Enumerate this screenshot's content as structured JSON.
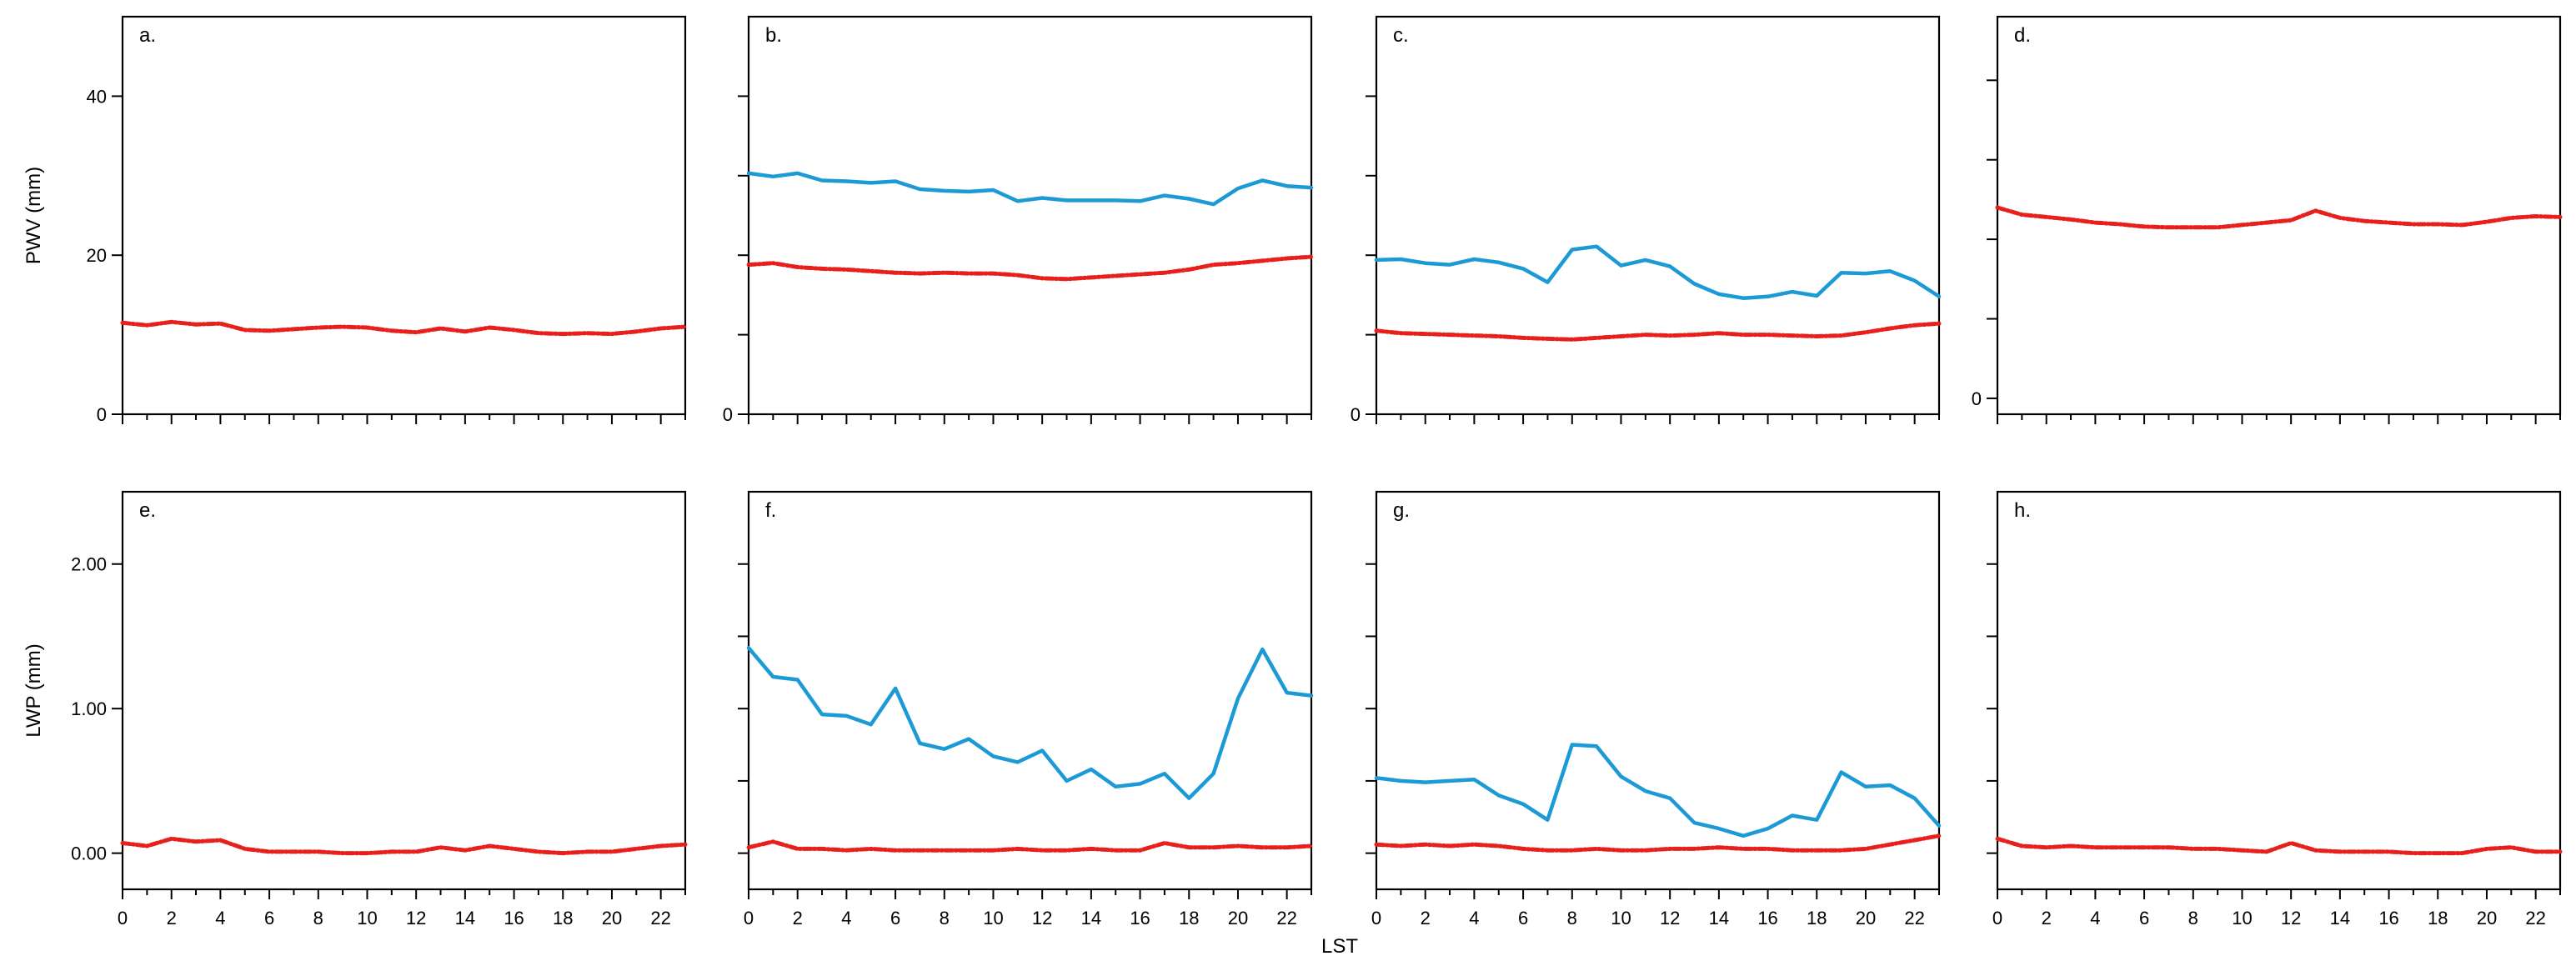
{
  "chart_data": [
    {
      "id": "a",
      "label": "a.",
      "type": "line",
      "ylabel": "PWV (mm)",
      "ylim": [
        0,
        50
      ],
      "yticks": [
        0,
        20,
        40
      ],
      "ytick_labels": [
        "0",
        "20",
        "40"
      ],
      "xlim": [
        0,
        23
      ],
      "x_tick_labels_shown": false,
      "series": [
        {
          "name": "red-dashed",
          "color": "#e8201c",
          "style": "dashed",
          "x": [
            0,
            1,
            2,
            3,
            4,
            5,
            6,
            7,
            8,
            9,
            10,
            11,
            12,
            13,
            14,
            15,
            16,
            17,
            18,
            19,
            20,
            21,
            22,
            23
          ],
          "values": [
            11.5,
            11.2,
            11.6,
            11.3,
            11.4,
            10.6,
            10.5,
            10.7,
            10.9,
            11.0,
            10.9,
            10.5,
            10.3,
            10.8,
            10.4,
            10.9,
            10.6,
            10.2,
            10.1,
            10.2,
            10.1,
            10.4,
            10.8,
            11.0
          ]
        }
      ]
    },
    {
      "id": "b",
      "label": "b.",
      "type": "line",
      "ylim": [
        0,
        50
      ],
      "yticks": [
        0,
        10,
        20,
        30,
        40
      ],
      "ytick_labels": [
        "0",
        "",
        "",
        "",
        ""
      ],
      "xlim": [
        0,
        23
      ],
      "x_tick_labels_shown": false,
      "series": [
        {
          "name": "blue-solid",
          "color": "#1b9ad6",
          "style": "solid",
          "x": [
            0,
            1,
            2,
            3,
            4,
            5,
            6,
            7,
            8,
            9,
            10,
            11,
            12,
            13,
            14,
            15,
            16,
            17,
            18,
            19,
            20,
            21,
            22,
            23
          ],
          "values": [
            30.3,
            29.9,
            30.3,
            29.4,
            29.3,
            29.1,
            29.3,
            28.3,
            28.1,
            28.0,
            28.2,
            26.8,
            27.2,
            26.9,
            26.9,
            26.9,
            26.8,
            27.5,
            27.1,
            26.4,
            28.4,
            29.4,
            28.7,
            28.5
          ]
        },
        {
          "name": "red-dashed",
          "color": "#e8201c",
          "style": "dashed",
          "x": [
            0,
            1,
            2,
            3,
            4,
            5,
            6,
            7,
            8,
            9,
            10,
            11,
            12,
            13,
            14,
            15,
            16,
            17,
            18,
            19,
            20,
            21,
            22,
            23
          ],
          "values": [
            18.8,
            19.0,
            18.5,
            18.3,
            18.2,
            18.0,
            17.8,
            17.7,
            17.8,
            17.7,
            17.7,
            17.5,
            17.1,
            17.0,
            17.2,
            17.4,
            17.6,
            17.8,
            18.2,
            18.8,
            19.0,
            19.3,
            19.6,
            19.8
          ]
        }
      ]
    },
    {
      "id": "c",
      "label": "c.",
      "type": "line",
      "ylim": [
        0,
        50
      ],
      "yticks": [
        0,
        10,
        20,
        30,
        40
      ],
      "ytick_labels": [
        "0",
        "",
        "",
        "",
        ""
      ],
      "xlim": [
        0,
        23
      ],
      "x_tick_labels_shown": false,
      "series": [
        {
          "name": "blue-solid",
          "color": "#1b9ad6",
          "style": "solid",
          "x": [
            0,
            1,
            2,
            3,
            4,
            5,
            6,
            7,
            8,
            9,
            10,
            11,
            12,
            13,
            14,
            15,
            16,
            17,
            18,
            19,
            20,
            21,
            22,
            23
          ],
          "values": [
            19.4,
            19.5,
            19.0,
            18.8,
            19.5,
            19.1,
            18.3,
            16.6,
            20.7,
            21.1,
            18.7,
            19.4,
            18.6,
            16.4,
            15.1,
            14.6,
            14.8,
            15.4,
            14.9,
            17.8,
            17.7,
            18.0,
            16.8,
            14.8
          ]
        },
        {
          "name": "red-dashed",
          "color": "#e8201c",
          "style": "dashed",
          "x": [
            0,
            1,
            2,
            3,
            4,
            5,
            6,
            7,
            8,
            9,
            10,
            11,
            12,
            13,
            14,
            15,
            16,
            17,
            18,
            19,
            20,
            21,
            22,
            23
          ],
          "values": [
            10.5,
            10.2,
            10.1,
            10.0,
            9.9,
            9.8,
            9.6,
            9.5,
            9.4,
            9.6,
            9.8,
            10.0,
            9.9,
            10.0,
            10.2,
            10.0,
            10.0,
            9.9,
            9.8,
            9.9,
            10.3,
            10.8,
            11.2,
            11.4
          ]
        }
      ]
    },
    {
      "id": "d",
      "label": "d.",
      "type": "line",
      "ylim": [
        -2,
        48
      ],
      "yticks": [
        0,
        10,
        20,
        30,
        40
      ],
      "ytick_labels": [
        "0",
        "",
        "",
        "",
        ""
      ],
      "xlim": [
        0,
        23
      ],
      "x_tick_labels_shown": false,
      "series": [
        {
          "name": "red-dashed",
          "color": "#e8201c",
          "style": "dashed",
          "x": [
            0,
            1,
            2,
            3,
            4,
            5,
            6,
            7,
            8,
            9,
            10,
            11,
            12,
            13,
            14,
            15,
            16,
            17,
            18,
            19,
            20,
            21,
            22,
            23
          ],
          "values": [
            24.0,
            23.1,
            22.8,
            22.5,
            22.1,
            21.9,
            21.6,
            21.5,
            21.5,
            21.5,
            21.8,
            22.1,
            22.4,
            23.6,
            22.7,
            22.3,
            22.1,
            21.9,
            21.9,
            21.8,
            22.2,
            22.7,
            22.9,
            22.8
          ]
        }
      ]
    },
    {
      "id": "e",
      "label": "e.",
      "type": "line",
      "ylabel": "LWP (mm)",
      "ylim": [
        -0.25,
        2.5
      ],
      "yticks": [
        0,
        1,
        2
      ],
      "ytick_labels": [
        "0.00",
        "1.00",
        "2.00"
      ],
      "xlim": [
        0,
        23
      ],
      "xticks": [
        0,
        2,
        4,
        6,
        8,
        10,
        12,
        14,
        16,
        18,
        20,
        22
      ],
      "xtick_labels": [
        "0",
        "2",
        "4",
        "6",
        "8",
        "10",
        "12",
        "14",
        "16",
        "18",
        "20",
        "22"
      ],
      "x_tick_labels_shown": true,
      "series": [
        {
          "name": "red-dashed",
          "color": "#e8201c",
          "style": "dashed",
          "x": [
            0,
            1,
            2,
            3,
            4,
            5,
            6,
            7,
            8,
            9,
            10,
            11,
            12,
            13,
            14,
            15,
            16,
            17,
            18,
            19,
            20,
            21,
            22,
            23
          ],
          "values": [
            0.07,
            0.05,
            0.1,
            0.08,
            0.09,
            0.03,
            0.01,
            0.01,
            0.01,
            0.0,
            0.0,
            0.01,
            0.01,
            0.04,
            0.02,
            0.05,
            0.03,
            0.01,
            0.0,
            0.01,
            0.01,
            0.03,
            0.05,
            0.06
          ]
        }
      ]
    },
    {
      "id": "f",
      "label": "f.",
      "type": "line",
      "ylim": [
        -0.25,
        2.5
      ],
      "yticks": [
        0,
        0.5,
        1.0,
        1.5,
        2.0
      ],
      "ytick_labels": [
        "",
        "",
        "",
        "",
        ""
      ],
      "xlim": [
        0,
        23
      ],
      "xticks": [
        0,
        2,
        4,
        6,
        8,
        10,
        12,
        14,
        16,
        18,
        20,
        22
      ],
      "xtick_labels": [
        "0",
        "2",
        "4",
        "6",
        "8",
        "10",
        "12",
        "14",
        "16",
        "18",
        "20",
        "22"
      ],
      "x_tick_labels_shown": true,
      "series": [
        {
          "name": "blue-solid",
          "color": "#1b9ad6",
          "style": "solid",
          "x": [
            0,
            1,
            2,
            3,
            4,
            5,
            6,
            7,
            8,
            9,
            10,
            11,
            12,
            13,
            14,
            15,
            16,
            17,
            18,
            19,
            20,
            21,
            22,
            23
          ],
          "values": [
            1.42,
            1.22,
            1.2,
            0.96,
            0.95,
            0.89,
            1.14,
            0.76,
            0.72,
            0.79,
            0.67,
            0.63,
            0.71,
            0.5,
            0.58,
            0.46,
            0.48,
            0.55,
            0.38,
            0.55,
            1.07,
            1.41,
            1.11,
            1.09
          ]
        },
        {
          "name": "red-dashed",
          "color": "#e8201c",
          "style": "dashed",
          "x": [
            0,
            1,
            2,
            3,
            4,
            5,
            6,
            7,
            8,
            9,
            10,
            11,
            12,
            13,
            14,
            15,
            16,
            17,
            18,
            19,
            20,
            21,
            22,
            23
          ],
          "values": [
            0.04,
            0.08,
            0.03,
            0.03,
            0.02,
            0.03,
            0.02,
            0.02,
            0.02,
            0.02,
            0.02,
            0.03,
            0.02,
            0.02,
            0.03,
            0.02,
            0.02,
            0.07,
            0.04,
            0.04,
            0.05,
            0.04,
            0.04,
            0.05
          ]
        }
      ]
    },
    {
      "id": "g",
      "label": "g.",
      "type": "line",
      "ylim": [
        -0.25,
        2.5
      ],
      "yticks": [
        0,
        0.5,
        1.0,
        1.5,
        2.0
      ],
      "ytick_labels": [
        "",
        "",
        "",
        "",
        ""
      ],
      "xlim": [
        0,
        23
      ],
      "xticks": [
        0,
        2,
        4,
        6,
        8,
        10,
        12,
        14,
        16,
        18,
        20,
        22
      ],
      "xtick_labels": [
        "0",
        "2",
        "4",
        "6",
        "8",
        "10",
        "12",
        "14",
        "16",
        "18",
        "20",
        "22"
      ],
      "x_tick_labels_shown": true,
      "series": [
        {
          "name": "blue-solid",
          "color": "#1b9ad6",
          "style": "solid",
          "x": [
            0,
            1,
            2,
            3,
            4,
            5,
            6,
            7,
            8,
            9,
            10,
            11,
            12,
            13,
            14,
            15,
            16,
            17,
            18,
            19,
            20,
            21,
            22,
            23
          ],
          "values": [
            0.52,
            0.5,
            0.49,
            0.5,
            0.51,
            0.4,
            0.34,
            0.23,
            0.75,
            0.74,
            0.53,
            0.43,
            0.38,
            0.21,
            0.17,
            0.12,
            0.17,
            0.26,
            0.23,
            0.56,
            0.46,
            0.47,
            0.38,
            0.19
          ]
        },
        {
          "name": "red-dashed",
          "color": "#e8201c",
          "style": "dashed",
          "x": [
            0,
            1,
            2,
            3,
            4,
            5,
            6,
            7,
            8,
            9,
            10,
            11,
            12,
            13,
            14,
            15,
            16,
            17,
            18,
            19,
            20,
            21,
            22,
            23
          ],
          "values": [
            0.06,
            0.05,
            0.06,
            0.05,
            0.06,
            0.05,
            0.03,
            0.02,
            0.02,
            0.03,
            0.02,
            0.02,
            0.03,
            0.03,
            0.04,
            0.03,
            0.03,
            0.02,
            0.02,
            0.02,
            0.03,
            0.06,
            0.09,
            0.12
          ]
        }
      ]
    },
    {
      "id": "h",
      "label": "h.",
      "type": "line",
      "ylim": [
        -0.25,
        2.5
      ],
      "yticks": [
        0,
        0.5,
        1.0,
        1.5,
        2.0
      ],
      "ytick_labels": [
        "",
        "",
        "",
        "",
        ""
      ],
      "xlim": [
        0,
        23
      ],
      "xticks": [
        0,
        2,
        4,
        6,
        8,
        10,
        12,
        14,
        16,
        18,
        20,
        22
      ],
      "xtick_labels": [
        "0",
        "2",
        "4",
        "6",
        "8",
        "10",
        "12",
        "14",
        "16",
        "18",
        "20",
        "22"
      ],
      "x_tick_labels_shown": true,
      "series": [
        {
          "name": "red-dashed",
          "color": "#e8201c",
          "style": "dashed",
          "x": [
            0,
            1,
            2,
            3,
            4,
            5,
            6,
            7,
            8,
            9,
            10,
            11,
            12,
            13,
            14,
            15,
            16,
            17,
            18,
            19,
            20,
            21,
            22,
            23
          ],
          "values": [
            0.1,
            0.05,
            0.04,
            0.05,
            0.04,
            0.04,
            0.04,
            0.04,
            0.03,
            0.03,
            0.02,
            0.01,
            0.07,
            0.02,
            0.01,
            0.01,
            0.01,
            0.0,
            0.0,
            0.0,
            0.03,
            0.04,
            0.01,
            0.01
          ]
        }
      ]
    }
  ],
  "xlabel": "LST"
}
